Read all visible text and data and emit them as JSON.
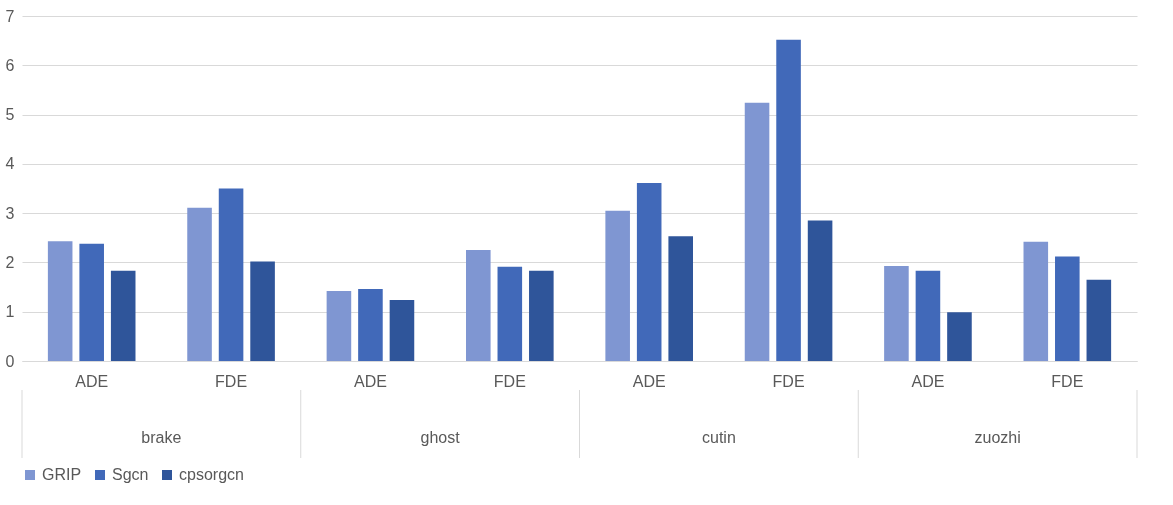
{
  "chart_data": {
    "type": "bar",
    "categories": [
      "ADE",
      "FDE",
      "ADE",
      "FDE",
      "ADE",
      "FDE",
      "ADE",
      "FDE"
    ],
    "annotations": [
      "brake",
      "ghost",
      "cutin",
      "zuozhi"
    ],
    "series": [
      {
        "name": "GRIP",
        "color": "#7f96d2",
        "values": [
          2.43,
          3.11,
          1.42,
          2.25,
          3.05,
          5.24,
          1.93,
          2.42
        ]
      },
      {
        "name": "Sgcn",
        "color": "#4169b9",
        "values": [
          2.38,
          3.5,
          1.46,
          1.91,
          3.61,
          6.52,
          1.83,
          2.12
        ]
      },
      {
        "name": "cpsorgcn",
        "color": "#2f559a",
        "values": [
          1.83,
          2.02,
          1.24,
          1.83,
          2.53,
          2.85,
          0.99,
          1.65
        ]
      }
    ],
    "ylim": [
      0,
      7
    ],
    "yticks": [
      0,
      1,
      2,
      3,
      4,
      5,
      6,
      7
    ],
    "grid": "y",
    "legend": "bottom"
  }
}
